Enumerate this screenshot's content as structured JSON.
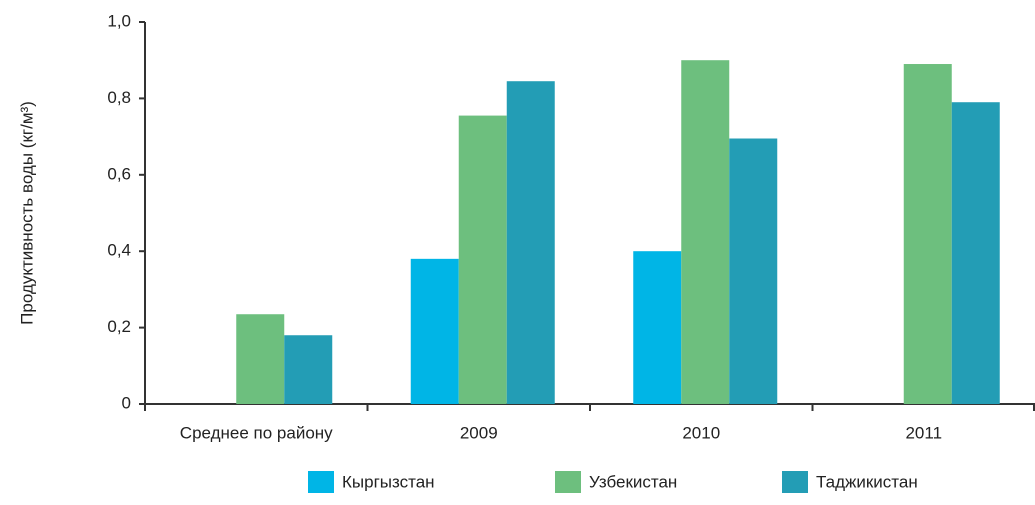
{
  "chart_data": {
    "type": "bar",
    "y_label": "Продуктивность воды (кг/м³)",
    "categories": [
      "Среднее по району",
      "2009",
      "2010",
      "2011"
    ],
    "series": [
      {
        "name": "Кыргызстан",
        "color": "#00b5e6",
        "values": [
          null,
          0.38,
          0.4,
          null
        ]
      },
      {
        "name": "Узбекистан",
        "color": "#6dbf7e",
        "values": [
          0.235,
          0.755,
          0.9,
          0.89
        ]
      },
      {
        "name": "Таджикистан",
        "color": "#239db5",
        "values": [
          0.18,
          0.845,
          0.695,
          0.79
        ]
      }
    ],
    "ylim": [
      0,
      1
    ],
    "yticks": [
      0,
      {
        "value": 0.2,
        "label": "0,2"
      },
      {
        "value": 0.4,
        "label": "0,4"
      },
      {
        "value": 0.6,
        "label": "0,6"
      },
      {
        "value": 0.8,
        "label": "0,8"
      },
      {
        "value": 1,
        "label": "1,0"
      }
    ],
    "grid": false,
    "legend": "bottom"
  }
}
